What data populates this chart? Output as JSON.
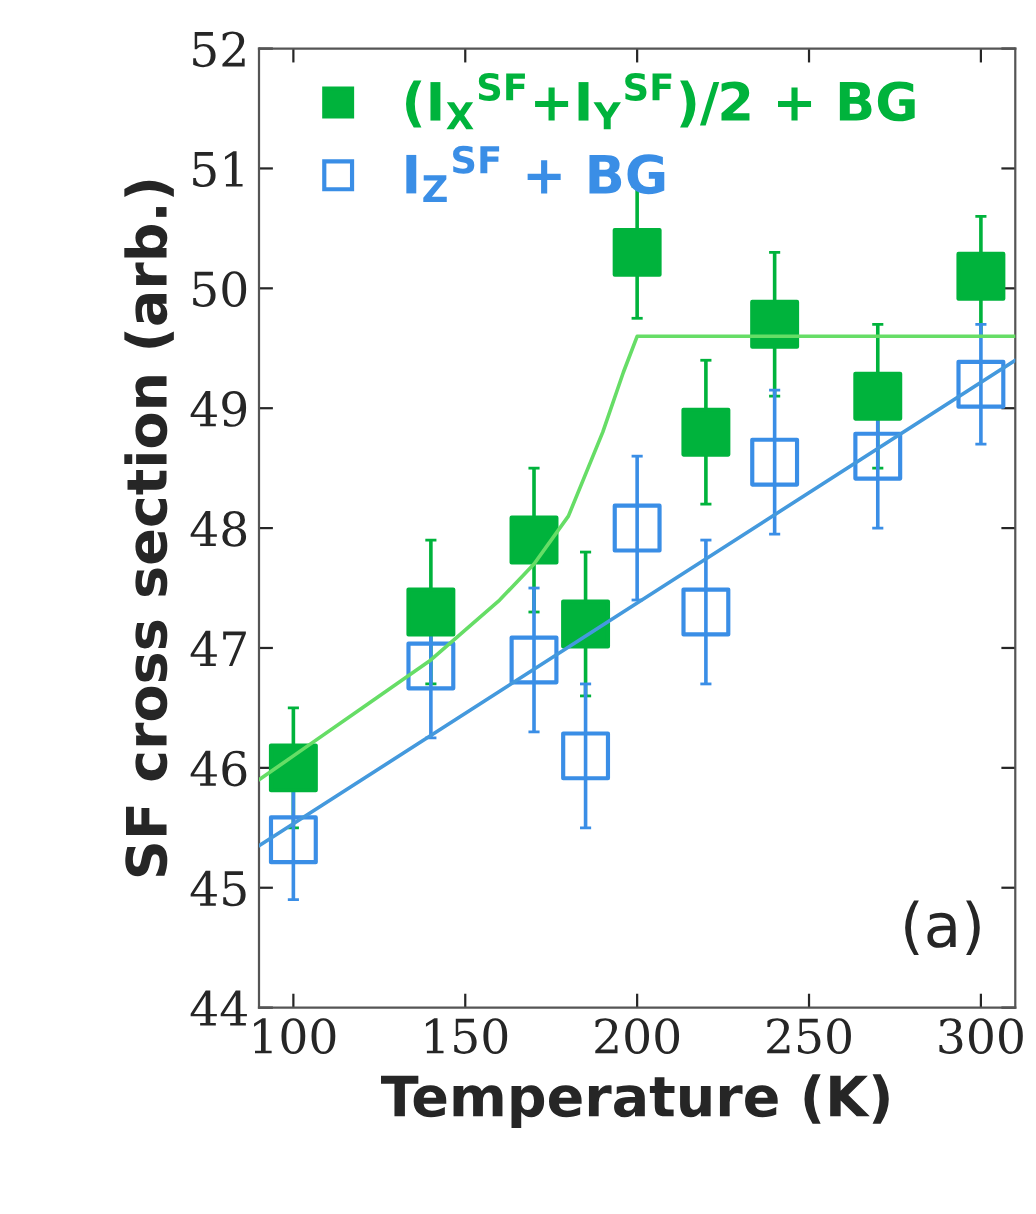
{
  "chart_data": {
    "type": "scatter",
    "xlabel": "Temperature (K)",
    "ylabel": "SF cross section (arb.)",
    "xlim": [
      90,
      310
    ],
    "ylim": [
      44,
      52
    ],
    "xticks": [
      100,
      150,
      200,
      250,
      300
    ],
    "yticks": [
      44,
      45,
      46,
      47,
      48,
      49,
      50,
      51,
      52
    ],
    "grid": false,
    "legend": "top left",
    "marker": "square",
    "annotations": [
      "(a)"
    ],
    "series": [
      {
        "name": "(I$_{X}$$^{SF}$+I$_{Y}$$^{SF}$)/2 + BG",
        "color": "#00b33c",
        "x": [
          100,
          140,
          170,
          185,
          200,
          220,
          240,
          270,
          300
        ],
        "values": [
          46.0,
          47.3,
          47.9,
          47.2,
          50.3,
          48.8,
          49.7,
          49.1,
          50.1
        ],
        "errors": [
          0.5,
          0.6,
          0.6,
          0.6,
          0.55,
          0.6,
          0.6,
          0.6,
          0.5
        ]
      },
      {
        "name": "I$_{Z}$$^{SF}$ + BG",
        "color": "#3a8ee6",
        "x": [
          100,
          140,
          170,
          185,
          200,
          220,
          240,
          270,
          300
        ],
        "values": [
          45.4,
          46.85,
          46.9,
          46.1,
          48.0,
          47.3,
          48.55,
          48.6,
          49.2
        ],
        "errors": [
          0.5,
          0.6,
          0.6,
          0.6,
          0.6,
          0.6,
          0.6,
          0.6,
          0.5
        ]
      },
      {
        "type": "line",
        "marker": "none",
        "color": "#66dd66",
        "x": [
          90,
          100,
          120,
          140,
          160,
          170,
          180,
          190,
          196,
          200,
          310
        ],
        "values": [
          45.9,
          46.1,
          46.5,
          46.9,
          47.4,
          47.7,
          48.1,
          48.8,
          49.3,
          49.6,
          49.6
        ]
      },
      {
        "type": "line",
        "marker": "none",
        "color": "#4499dd",
        "x": [
          90,
          310
        ],
        "values": [
          45.35,
          49.4
        ]
      }
    ]
  }
}
